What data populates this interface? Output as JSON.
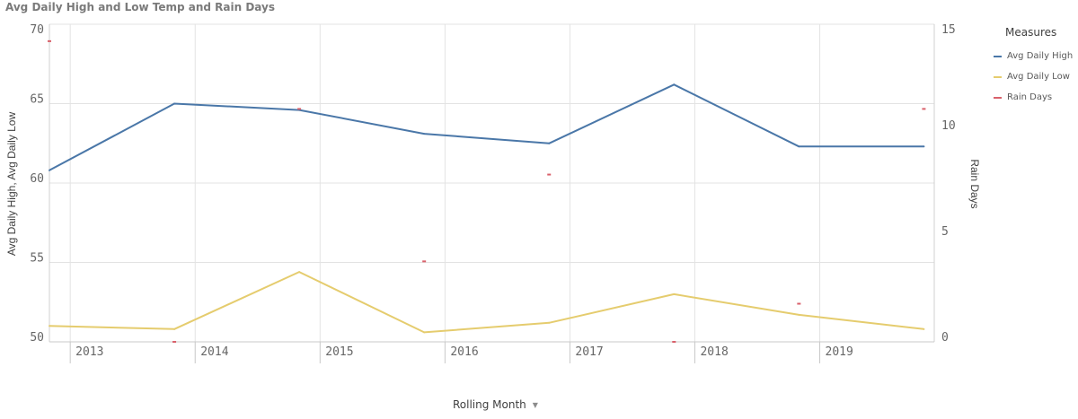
{
  "header": {
    "title": "Avg Daily High and Low Temp and Rain Days"
  },
  "legend": {
    "title": "Measures",
    "items": [
      {
        "label": "Avg Daily High",
        "color": "#4a77a8"
      },
      {
        "label": "Avg Daily Low",
        "color": "#e5cc6e"
      },
      {
        "label": "Rain Days",
        "color": "#d9616b"
      }
    ]
  },
  "x_axis": {
    "title": "Rolling Month",
    "dropdown_icon": "caret-down-icon"
  },
  "chart_data": {
    "type": "line",
    "title": "Avg Daily High and Low Temp and Rain Days",
    "xlabel": "Rolling Month",
    "ylabel": "Avg Daily High, Avg Daily Low",
    "y2label": "Rain Days",
    "ylim": [
      50,
      70
    ],
    "y2lim": [
      0,
      15
    ],
    "yticks": [
      50,
      55,
      60,
      65,
      70
    ],
    "y2ticks": [
      0,
      5,
      10,
      15
    ],
    "x_tick_labels": [
      "2013",
      "2014",
      "2015",
      "2016",
      "2017",
      "2018",
      "2019"
    ],
    "x_range": [
      "2012-11",
      "2019-12"
    ],
    "grid": true,
    "legend_position": "right",
    "series": [
      {
        "name": "Avg Daily High",
        "axis": "left",
        "color": "#4a77a8",
        "points": [
          {
            "x": "2012-11",
            "y": 60.8
          },
          {
            "x": "2013-11",
            "y": 65.0
          },
          {
            "x": "2014-11",
            "y": 64.6
          },
          {
            "x": "2015-11",
            "y": 63.1
          },
          {
            "x": "2016-11",
            "y": 62.5
          },
          {
            "x": "2017-11",
            "y": 66.2
          },
          {
            "x": "2018-11",
            "y": 62.3
          },
          {
            "x": "2019-11",
            "y": 62.3
          }
        ]
      },
      {
        "name": "Avg Daily Low",
        "axis": "left",
        "color": "#e5cc6e",
        "points": [
          {
            "x": "2012-11",
            "y": 51.0
          },
          {
            "x": "2013-11",
            "y": 50.8
          },
          {
            "x": "2014-11",
            "y": 54.4
          },
          {
            "x": "2015-11",
            "y": 50.6
          },
          {
            "x": "2016-11",
            "y": 51.2
          },
          {
            "x": "2017-11",
            "y": 53.0
          },
          {
            "x": "2018-11",
            "y": 51.7
          },
          {
            "x": "2019-11",
            "y": 50.8
          }
        ]
      },
      {
        "name": "Rain Days",
        "axis": "right",
        "color": "#d9616b",
        "marker_only": true,
        "points": [
          {
            "x": "2012-11",
            "y": 14.2
          },
          {
            "x": "2013-11",
            "y": 0
          },
          {
            "x": "2014-11",
            "y": 11.0
          },
          {
            "x": "2015-11",
            "y": 3.8
          },
          {
            "x": "2016-11",
            "y": 7.9
          },
          {
            "x": "2017-11",
            "y": 0
          },
          {
            "x": "2018-11",
            "y": 1.8
          },
          {
            "x": "2019-11",
            "y": 11.0
          }
        ]
      }
    ]
  }
}
